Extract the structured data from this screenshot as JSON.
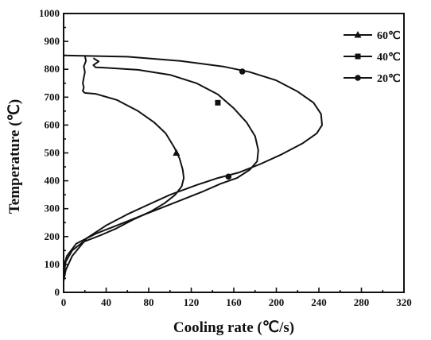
{
  "chart_data": {
    "type": "line",
    "title": "",
    "xlabel": "Cooling rate  (℃/s)",
    "ylabel": "Temperature  (℃)",
    "xlim": [
      0,
      320
    ],
    "ylim": [
      0,
      1000
    ],
    "xticks": [
      0,
      40,
      80,
      120,
      160,
      200,
      240,
      280,
      320
    ],
    "xtick_labels": [
      "0",
      "40",
      "80",
      "120",
      "160",
      "200",
      "240",
      "280",
      "320"
    ],
    "yticks": [
      0,
      100,
      200,
      300,
      400,
      500,
      600,
      700,
      800,
      900,
      1000
    ],
    "ytick_labels": [
      "0",
      "100",
      "200",
      "300",
      "400",
      "500",
      "600",
      "700",
      "800",
      "900",
      "1000"
    ],
    "grid": false,
    "legend_position": "top-right",
    "series": [
      {
        "name": "60℃",
        "marker": "triangle",
        "x": [
          20,
          21,
          19,
          20,
          19,
          18,
          19,
          18,
          20,
          30,
          50,
          70,
          85,
          96,
          104,
          109,
          112,
          113,
          111,
          105,
          95,
          82,
          65,
          50,
          35,
          18,
          8,
          2,
          0
        ],
        "y": [
          848,
          830,
          810,
          790,
          770,
          750,
          735,
          722,
          715,
          712,
          690,
          650,
          610,
          570,
          520,
          480,
          440,
          410,
          380,
          350,
          320,
          290,
          260,
          230,
          205,
          180,
          150,
          110,
          60
        ],
        "marker_points": [
          {
            "x": 106,
            "y": 500
          }
        ]
      },
      {
        "name": "40℃",
        "marker": "square",
        "x": [
          28,
          33,
          28,
          30,
          40,
          70,
          100,
          125,
          145,
          160,
          172,
          180,
          183,
          182,
          175,
          163,
          148,
          130,
          110,
          90,
          70,
          50,
          30,
          12,
          3,
          0
        ],
        "y": [
          840,
          828,
          815,
          807,
          805,
          798,
          780,
          750,
          710,
          660,
          610,
          560,
          510,
          470,
          440,
          410,
          390,
          360,
          330,
          300,
          270,
          240,
          210,
          175,
          130,
          90
        ],
        "marker_points": [
          {
            "x": 145,
            "y": 680
          }
        ]
      },
      {
        "name": "20℃",
        "marker": "circle",
        "x": [
          0,
          60,
          110,
          150,
          175,
          200,
          220,
          235,
          242,
          243,
          238,
          225,
          205,
          185,
          165,
          145,
          125,
          100,
          80,
          60,
          40,
          22,
          8,
          2,
          0
        ],
        "y": [
          850,
          845,
          830,
          810,
          790,
          760,
          720,
          680,
          640,
          600,
          570,
          535,
          495,
          460,
          430,
          410,
          385,
          350,
          315,
          280,
          240,
          195,
          130,
          80,
          40
        ],
        "marker_points": [
          {
            "x": 168,
            "y": 792
          },
          {
            "x": 155,
            "y": 415
          }
        ]
      }
    ]
  }
}
